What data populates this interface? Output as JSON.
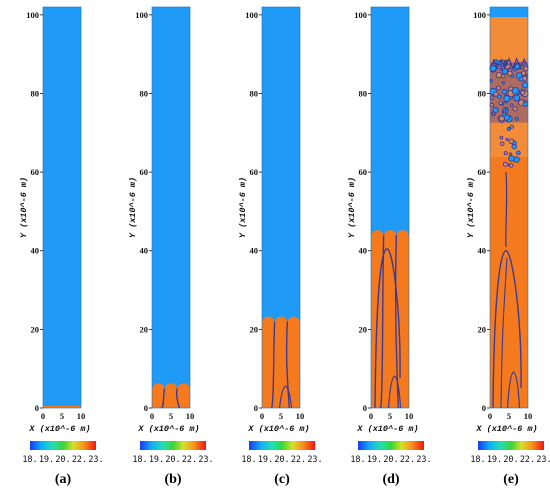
{
  "figure": {
    "colors": {
      "vapor": "#1f9af7",
      "liquid": "#f57a1e",
      "interface": "#3a3b96"
    },
    "colorbar": {
      "ticks": [
        "18.",
        "19.",
        "20.",
        "22.",
        "23."
      ]
    },
    "axes": {
      "ylabel": "Y (x10^-6 m)",
      "xlabel": "X (x10^-6 m)",
      "yticks": [
        "0",
        "20",
        "40",
        "60",
        "80",
        "100"
      ],
      "xticks": [
        "0",
        "5",
        "10"
      ],
      "ylim": [
        0,
        102
      ],
      "xlim": [
        0,
        10
      ]
    },
    "panels": [
      {
        "label": "(a)",
        "front_height": 0.5,
        "morphology": "flat"
      },
      {
        "label": "(b)",
        "front_height": 6,
        "morphology": "fingers"
      },
      {
        "label": "(c)",
        "front_height": 23,
        "morphology": "fingers"
      },
      {
        "label": "(d)",
        "front_height": 45,
        "morphology": "fingers"
      },
      {
        "label": "(e)",
        "front_height": 102,
        "morphology": "breakup"
      }
    ]
  }
}
